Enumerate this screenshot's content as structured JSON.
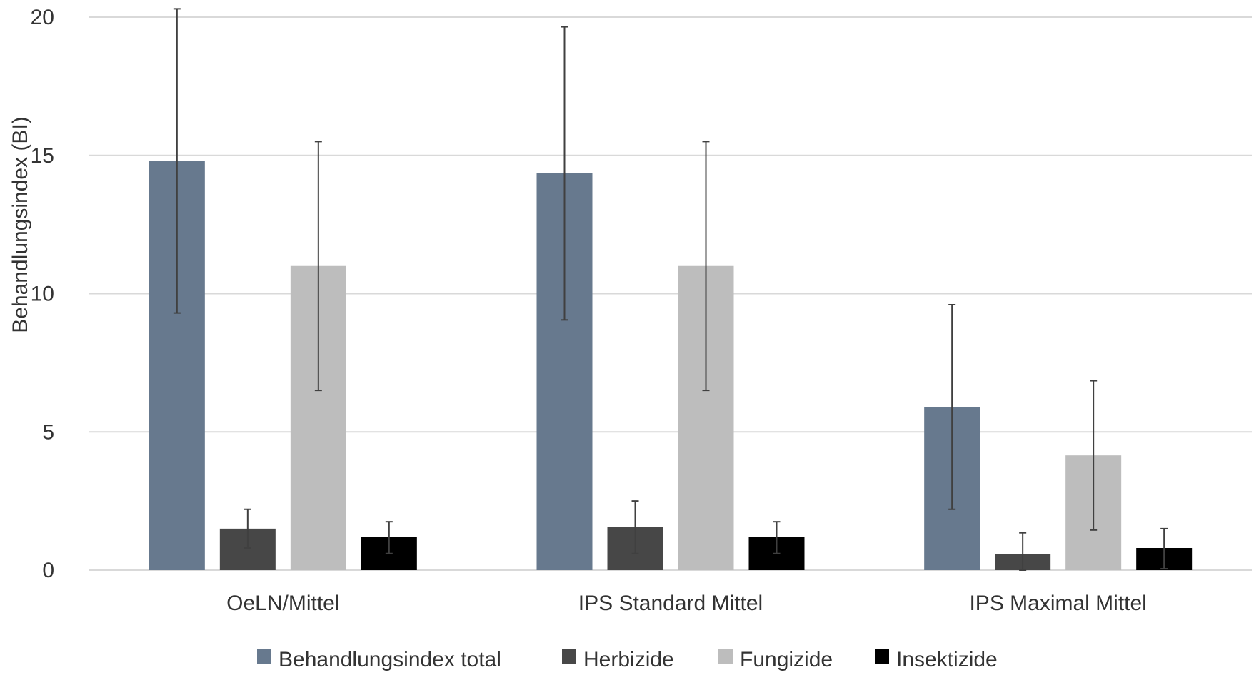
{
  "chart_data": {
    "type": "bar",
    "title": "",
    "xlabel": "",
    "ylabel": "Behandlungsindex (BI)",
    "ylim": [
      0,
      20
    ],
    "yticks": [
      0,
      5,
      10,
      15,
      20
    ],
    "grid": true,
    "legend_position": "bottom",
    "categories": [
      "OeLN/Mittel",
      "IPS Standard Mittel",
      "IPS Maximal Mittel"
    ],
    "series": [
      {
        "name": "Behandlungsindex total",
        "color": "#67798e",
        "values": [
          14.8,
          14.35,
          5.9
        ],
        "error_low": [
          9.3,
          9.05,
          2.2
        ],
        "error_high": [
          20.3,
          19.65,
          9.6
        ]
      },
      {
        "name": "Herbizide",
        "color": "#474747",
        "values": [
          1.5,
          1.55,
          0.58
        ],
        "error_low": [
          0.8,
          0.6,
          0.0
        ],
        "error_high": [
          2.2,
          2.5,
          1.35
        ]
      },
      {
        "name": "Fungizide",
        "color": "#bdbdbd",
        "values": [
          11.0,
          11.0,
          4.15
        ],
        "error_low": [
          6.5,
          6.5,
          1.45
        ],
        "error_high": [
          15.5,
          15.5,
          6.85
        ]
      },
      {
        "name": "Insektizide",
        "color": "#000000",
        "values": [
          1.2,
          1.2,
          0.8
        ],
        "error_low": [
          0.6,
          0.6,
          0.05
        ],
        "error_high": [
          1.75,
          1.75,
          1.5
        ]
      }
    ],
    "gridline_color": "#d9d9d9",
    "errorbar_color": "#404040"
  }
}
